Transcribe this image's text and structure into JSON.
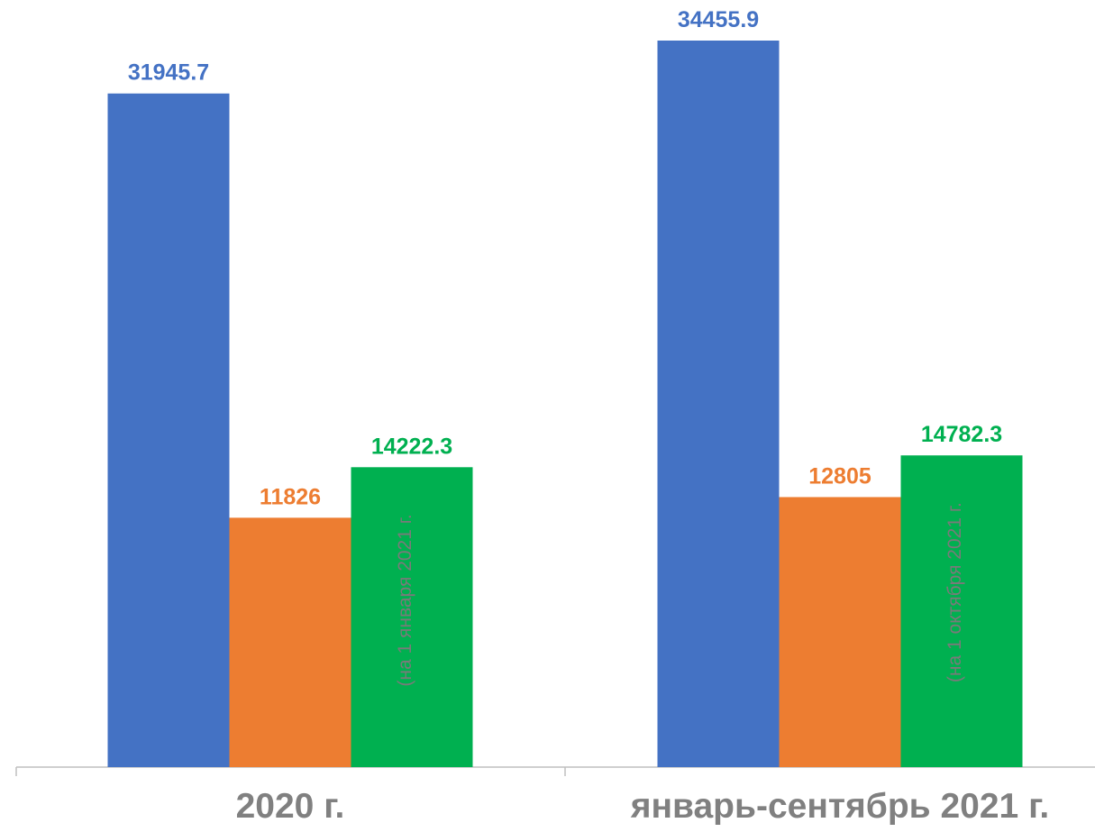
{
  "colors": {
    "series_1": "#4472C4",
    "series_2": "#ED7D31",
    "series_3": "#00B050",
    "axis": "#bfbfbf",
    "category_text": "#808080",
    "note_text": "#7a7a7a"
  },
  "chart_data": {
    "type": "bar",
    "categories": [
      "2020 г.",
      "январь-сентябрь 2021 г."
    ],
    "series": [
      {
        "values": [
          31945.7,
          34455.9
        ],
        "value_labels": [
          "31945.7",
          "34455.9"
        ],
        "color": "#4472C4"
      },
      {
        "values": [
          11826,
          12805
        ],
        "value_labels": [
          "11826",
          "12805"
        ],
        "color": "#ED7D31"
      },
      {
        "values": [
          14222.3,
          14782.3
        ],
        "value_labels": [
          "14222.3",
          "14782.3"
        ],
        "notes": [
          "(на 1 января 2021 г.",
          "(на 1 октября 2021 г."
        ],
        "color": "#00B050"
      }
    ],
    "ylim": [
      0,
      35500
    ],
    "grid": false,
    "legend": "none"
  }
}
